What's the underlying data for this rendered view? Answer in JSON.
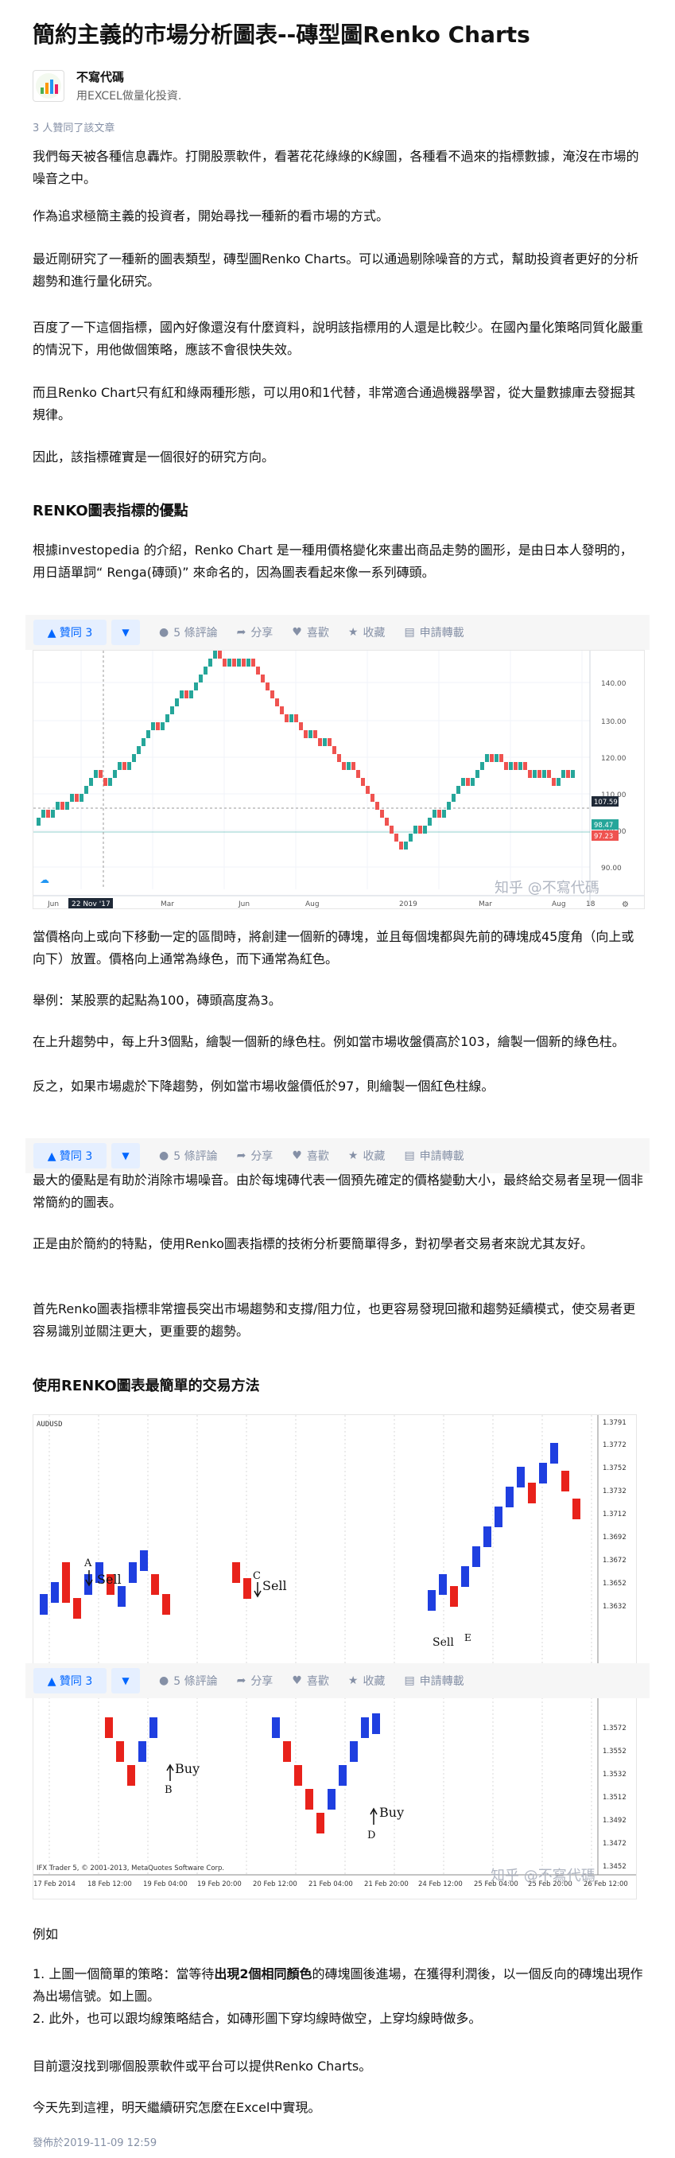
{
  "article": {
    "title": "簡約主義的市場分析圖表--磚型圖Renko Charts",
    "author_name": "不寫代碼",
    "author_bio": "用EXCEL做量化投資.",
    "likers": "3 人贊同了該文章",
    "footer": "發佈於2019-11-09 12:59"
  },
  "paragraphs": {
    "p1": "我們每天被各種信息轟炸。打開股票軟件，看著花花綠綠的K線圖，各種看不過來的指標數據，淹沒在市場的噪音之中。",
    "p2": "作為追求極簡主義的投資者，開始尋找一種新的看市場的方式。",
    "p3": "最近剛研究了一種新的圖表類型，磚型圖Renko Charts。可以通過剔除噪音的方式，幫助投資者更好的分析趨勢和進行量化研究。",
    "p4": "百度了一下這個指標，國內好像還沒有什麼資料，說明該指標用的人還是比較少。在國內量化策略同質化嚴重的情況下，用他做個策略，應該不會很快失效。",
    "p5": "而且Renko Chart只有紅和綠兩種形態，可以用0和1代替，非常適合通過機器學習，從大量數據庫去發掘其規律。",
    "p6": "因此，該指標確實是一個很好的研究方向。",
    "h_adv": "RENKO圖表指標的優點",
    "p7": "根據investopedia 的介紹，Renko Chart 是一種用價格變化來畫出商品走勢的圖形，是由日本人發明的，用日語單詞“ Renga(磚頭)” 來命名的，因為圖表看起來像一系列磚頭。",
    "p8": "當價格向上或向下移動一定的區間時，將創建一個新的磚塊，並且每個塊都與先前的磚塊成45度角（向上或向下）放置。價格向上通常為綠色，而下通常為紅色。",
    "p9": "舉例：某股票的起點為100，磚頭高度為3。",
    "p10": "在上升趨勢中，每上升3個點，繪製一個新的綠色柱。例如當市場收盤價高於103，繪製一個新的綠色柱。",
    "p11": "反之，如果市場處於下降趨勢，例如當市場收盤價低於97，則繪製一個紅色柱線。",
    "p12": "最大的優點是有助於消除市場噪音。由於每塊磚代表一個預先確定的價格變動大小，最終給交易者呈現一個非常簡約的圖表。",
    "p13": "正是由於簡約的特點，使用Renko圖表指標的技術分析要簡單得多，對初學者交易者來說尤其友好。",
    "p14": "首先Renko圖表指標非常擅長突出市場趨勢和支撐/阻力位，也更容易發現回撤和趨勢延續模式，使交易者更容易識別並關注更大，更重要的趨勢。",
    "h_method": "使用RENKO圖表最簡單的交易方法",
    "p15": "例如",
    "li1_a": "1. 上圖一個簡單的策略：當等待",
    "li1_b": "出現2個相同顏色",
    "li1_c": "的磚塊圖後進場，在獲得利潤後，以一個反向的磚塊出現作為出場信號。如上圖。",
    "li2": "2. 此外，也可以跟均線策略結合，如磚形圖下穿均線時做空，上穿均線時做多。",
    "p16": "目前還沒找到哪個股票軟件或平台可以提供Renko Charts。",
    "p17": "今天先到這裡，明天繼續研究怎麼在Excel中實現。"
  },
  "toolbar": {
    "vote_label": "▲ 贊同 3",
    "vote_down": "▼",
    "comments": "5 條評論",
    "share": "分享",
    "like": "喜歡",
    "collect": "收藏",
    "reprint": "申請轉載"
  },
  "chart1": {
    "watermark": "知乎 @不寫代碼",
    "y_ticks": [
      "140.00",
      "130.00",
      "120.00",
      "110.00",
      "100.00",
      "90.00"
    ],
    "x_ticks": [
      "Jun",
      "22 Nov '17",
      "Mar",
      "Jun",
      "Aug",
      "2019",
      "Mar",
      "Aug",
      "18"
    ],
    "price_labels": [
      "107.59",
      "98.47",
      "97.23"
    ],
    "colors": {
      "up": "#26a69a",
      "down": "#ef5350"
    }
  },
  "chart2": {
    "symbol": "AUDUSD",
    "watermark": "知乎 @不寫代碼",
    "copyright": "IFX Trader 5, © 2001-2013, MetaQuotes Software Corp.",
    "y_ticks_top": [
      "1.3791",
      "1.3772",
      "1.3752",
      "1.3732",
      "1.3712",
      "1.3692",
      "1.3672",
      "1.3652",
      "1.3632"
    ],
    "y_ticks_bottom": [
      "1.3572",
      "1.3552",
      "1.3532",
      "1.3512",
      "1.3492",
      "1.3472",
      "1.3452"
    ],
    "x_ticks": [
      "17 Feb 2014",
      "18 Feb 12:00",
      "19 Feb 04:00",
      "19 Feb 20:00",
      "20 Feb 12:00",
      "21 Feb 04:00",
      "21 Feb 20:00",
      "24 Feb 12:00",
      "25 Feb 04:00",
      "25 Feb 20:00",
      "26 Feb 12:00"
    ],
    "labels": {
      "a": "A",
      "sell1": "Sell",
      "c": "C",
      "sell2": "Sell",
      "b": "B",
      "buy1": "Buy",
      "d": "D",
      "buy2": "Buy",
      "sell3": "Sell",
      "e": "E"
    },
    "colors": {
      "up": "#1f3fe0",
      "down": "#e8221b"
    }
  }
}
